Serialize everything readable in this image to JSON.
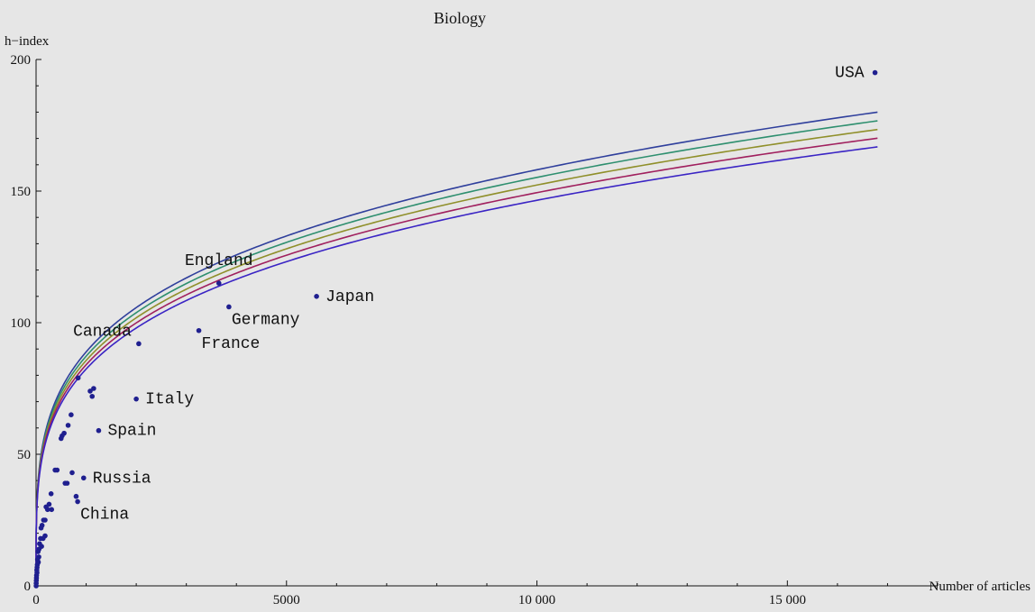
{
  "chart_data": {
    "type": "scatter",
    "title": "Biology",
    "xlabel": "Number of articles",
    "ylabel": "h−index",
    "xlim": [
      0,
      18000
    ],
    "ylim": [
      0,
      200
    ],
    "x_ticks": [
      0,
      5000,
      10000,
      15000
    ],
    "x_tick_labels": [
      "0",
      "5000",
      "10 000",
      "15 000"
    ],
    "y_ticks": [
      0,
      50,
      100,
      150,
      200
    ],
    "y_tick_labels": [
      "0",
      "50",
      "100",
      "150",
      "200"
    ],
    "grid": false,
    "point_color": "#1f1f8f",
    "labeled_points": [
      {
        "label": "USA",
        "x": 16750,
        "y": 195,
        "label_pos": "left"
      },
      {
        "label": "England",
        "x": 3650,
        "y": 115,
        "label_pos": "above"
      },
      {
        "label": "Japan",
        "x": 5600,
        "y": 110,
        "label_pos": "right"
      },
      {
        "label": "Germany",
        "x": 3850,
        "y": 106,
        "label_pos": "below-right"
      },
      {
        "label": "France",
        "x": 3250,
        "y": 97,
        "label_pos": "below-right"
      },
      {
        "label": "Canada",
        "x": 2050,
        "y": 92,
        "label_pos": "above-left"
      },
      {
        "label": "Italy",
        "x": 2000,
        "y": 71,
        "label_pos": "right"
      },
      {
        "label": "Spain",
        "x": 1250,
        "y": 59,
        "label_pos": "right"
      },
      {
        "label": "Russia",
        "x": 950,
        "y": 41,
        "label_pos": "right"
      },
      {
        "label": "China",
        "x": 830,
        "y": 32,
        "label_pos": "below-right"
      }
    ],
    "unlabeled_points": [
      [
        840,
        79
      ],
      [
        1080,
        74
      ],
      [
        1150,
        75
      ],
      [
        1120,
        72
      ],
      [
        700,
        65
      ],
      [
        640,
        61
      ],
      [
        560,
        58
      ],
      [
        520,
        57
      ],
      [
        500,
        56
      ],
      [
        720,
        43
      ],
      [
        800,
        34
      ],
      [
        580,
        39
      ],
      [
        620,
        39
      ],
      [
        420,
        44
      ],
      [
        380,
        44
      ],
      [
        300,
        35
      ],
      [
        260,
        31
      ],
      [
        310,
        29
      ],
      [
        230,
        29
      ],
      [
        200,
        30
      ],
      [
        180,
        25
      ],
      [
        150,
        25
      ],
      [
        120,
        23
      ],
      [
        100,
        22
      ],
      [
        180,
        19
      ],
      [
        140,
        18
      ],
      [
        90,
        18
      ],
      [
        70,
        16
      ],
      [
        110,
        15
      ],
      [
        60,
        14
      ],
      [
        40,
        13
      ],
      [
        55,
        11
      ],
      [
        30,
        10
      ],
      [
        45,
        9
      ],
      [
        25,
        8
      ],
      [
        20,
        7
      ],
      [
        15,
        6
      ],
      [
        18,
        5
      ],
      [
        10,
        4
      ],
      [
        8,
        3
      ],
      [
        5,
        2
      ],
      [
        3,
        1
      ],
      [
        2,
        0
      ]
    ],
    "fit_curves": [
      {
        "color": "#2f3f9c",
        "k": 15.81
      },
      {
        "color": "#2e8f6f",
        "k": 15.52
      },
      {
        "color": "#8f8f2a",
        "k": 15.23
      },
      {
        "color": "#a0205e",
        "k": 14.94
      },
      {
        "color": "#3a24c4",
        "k": 14.65
      }
    ],
    "fit_form": "y = k * x^(1/4)"
  }
}
